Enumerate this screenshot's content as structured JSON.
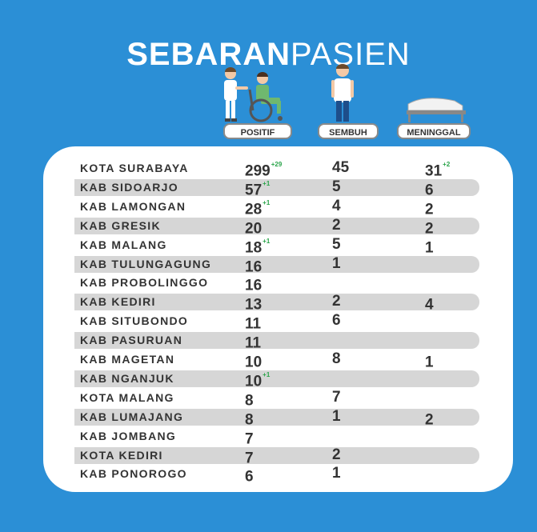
{
  "title": {
    "bold": "SEBARAN",
    "light": "PASIEN"
  },
  "headers": {
    "positif": "POSITIF",
    "sembuh": "SEMBUH",
    "meninggal": "MENINGGAL"
  },
  "rows": [
    {
      "name": "KOTA SURABAYA",
      "positif": "299",
      "positif_new": "+29",
      "sembuh": "45",
      "meninggal": "31",
      "meninggal_new": "+2"
    },
    {
      "name": "KAB SIDOARJO",
      "positif": "57",
      "positif_new": "+1",
      "sembuh": "5",
      "meninggal": "6",
      "meninggal_new": ""
    },
    {
      "name": "KAB LAMONGAN",
      "positif": "28",
      "positif_new": "+1",
      "sembuh": "4",
      "meninggal": "2",
      "meninggal_new": ""
    },
    {
      "name": "KAB GRESIK",
      "positif": "20",
      "positif_new": "",
      "sembuh": "2",
      "meninggal": "2",
      "meninggal_new": ""
    },
    {
      "name": "KAB MALANG",
      "positif": "18",
      "positif_new": "+1",
      "sembuh": "5",
      "meninggal": "1",
      "meninggal_new": ""
    },
    {
      "name": "KAB TULUNGAGUNG",
      "positif": "16",
      "positif_new": "",
      "sembuh": "1",
      "meninggal": "",
      "meninggal_new": ""
    },
    {
      "name": "KAB PROBOLINGGO",
      "positif": "16",
      "positif_new": "",
      "sembuh": "",
      "meninggal": "",
      "meninggal_new": ""
    },
    {
      "name": "KAB KEDIRI",
      "positif": "13",
      "positif_new": "",
      "sembuh": "2",
      "meninggal": "4",
      "meninggal_new": ""
    },
    {
      "name": "KAB SITUBONDO",
      "positif": "11",
      "positif_new": "",
      "sembuh": "6",
      "meninggal": "",
      "meninggal_new": ""
    },
    {
      "name": "KAB PASURUAN",
      "positif": "11",
      "positif_new": "",
      "sembuh": "",
      "meninggal": "",
      "meninggal_new": ""
    },
    {
      "name": "KAB MAGETAN",
      "positif": "10",
      "positif_new": "",
      "sembuh": "8",
      "meninggal": "1",
      "meninggal_new": ""
    },
    {
      "name": "KAB NGANJUK",
      "positif": "10",
      "positif_new": "+1",
      "sembuh": "",
      "meninggal": "",
      "meninggal_new": ""
    },
    {
      "name": "KOTA MALANG",
      "positif": "8",
      "positif_new": "",
      "sembuh": "7",
      "meninggal": "",
      "meninggal_new": ""
    },
    {
      "name": "KAB LUMAJANG",
      "positif": "8",
      "positif_new": "",
      "sembuh": "1",
      "meninggal": "2",
      "meninggal_new": ""
    },
    {
      "name": "KAB JOMBANG",
      "positif": "7",
      "positif_new": "",
      "sembuh": "",
      "meninggal": "",
      "meninggal_new": ""
    },
    {
      "name": "KOTA KEDIRI",
      "positif": "7",
      "positif_new": "",
      "sembuh": "2",
      "meninggal": "",
      "meninggal_new": ""
    },
    {
      "name": "KAB PONOROGO",
      "positif": "6",
      "positif_new": "",
      "sembuh": "1",
      "meninggal": "",
      "meninggal_new": ""
    }
  ],
  "colors": {
    "background": "#2b8fd6",
    "band": "#d6d6d6",
    "new_cases": "#2aa44a",
    "text": "#333333"
  },
  "icons": {
    "positif": "nurse-wheelchair-patient-icon",
    "sembuh": "recovered-person-icon",
    "meninggal": "bed-icon"
  }
}
